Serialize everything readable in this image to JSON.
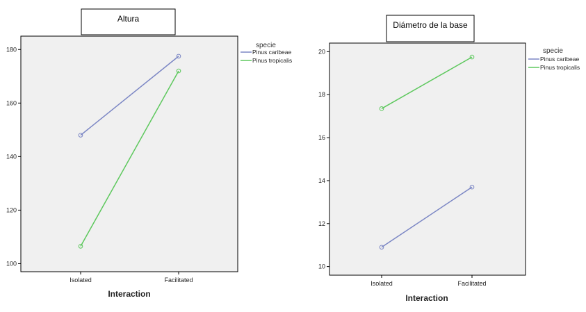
{
  "chart_data": [
    {
      "type": "line",
      "title": "Altura",
      "xlabel": "Interaction",
      "ylabel": "",
      "categories": [
        "Isolated",
        "Facilitated"
      ],
      "ylim": [
        97,
        185
      ],
      "yticks": [
        100,
        120,
        140,
        160,
        180
      ],
      "legend_title": "specie",
      "legend_position": "right",
      "grid": false,
      "series": [
        {
          "name": "Pinus caribeae",
          "values": [
            148,
            177.5
          ],
          "color": "#7b86c4"
        },
        {
          "name": "Pinus tropicalis",
          "values": [
            106.5,
            172
          ],
          "color": "#5dc85d"
        }
      ]
    },
    {
      "type": "line",
      "title": "Diámetro de la base",
      "xlabel": "Interaction",
      "ylabel": "",
      "categories": [
        "Isolated",
        "Facilitated"
      ],
      "ylim": [
        9.6,
        20.4
      ],
      "yticks": [
        10,
        12,
        14,
        16,
        18,
        20
      ],
      "legend_title": "specie",
      "legend_position": "right",
      "grid": false,
      "series": [
        {
          "name": "Pinus caribeae",
          "values": [
            10.9,
            13.7
          ],
          "color": "#7b86c4"
        },
        {
          "name": "Pinus tropicalis",
          "values": [
            17.35,
            19.75
          ],
          "color": "#5dc85d"
        }
      ]
    }
  ]
}
